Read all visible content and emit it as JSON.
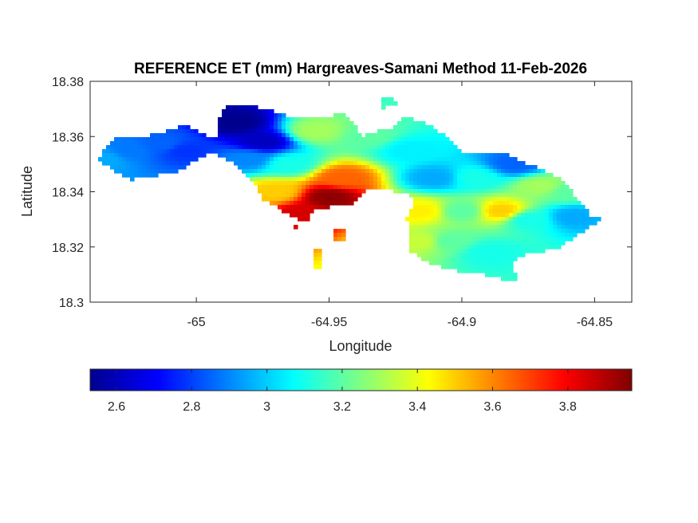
{
  "chart_data": {
    "type": "heatmap",
    "title": "REFERENCE ET (mm) Hargreaves-Samani Method  11-Feb-2026",
    "xlabel": "Longitude",
    "ylabel": "Latitude",
    "xlim": [
      -65.04,
      -64.836
    ],
    "ylim": [
      18.3,
      18.38
    ],
    "xticks": [
      -65,
      -64.95,
      -64.9,
      -64.85
    ],
    "xtick_labels": [
      "-65",
      "-64.95",
      "-64.9",
      "-64.85"
    ],
    "yticks": [
      18.3,
      18.32,
      18.34,
      18.36,
      18.38
    ],
    "ytick_labels": [
      "18.3",
      "18.32",
      "18.34",
      "18.36",
      "18.38"
    ],
    "colormap": "jet",
    "colorbar": {
      "location": "bottom",
      "range": [
        2.53,
        3.97
      ],
      "ticks": [
        2.6,
        2.8,
        3,
        3.2,
        3.4,
        3.6,
        3.8
      ],
      "tick_labels": [
        "2.6",
        "2.8",
        "3",
        "3.2",
        "3.4",
        "3.6",
        "3.8"
      ]
    },
    "grid": false,
    "points": [
      {
        "lon": -65.035,
        "lat": 18.352,
        "v": 2.95
      },
      {
        "lon": -65.025,
        "lat": 18.355,
        "v": 2.88
      },
      {
        "lon": -65.012,
        "lat": 18.357,
        "v": 2.85
      },
      {
        "lon": -65.005,
        "lat": 18.355,
        "v": 2.78
      },
      {
        "lon": -64.985,
        "lat": 18.365,
        "v": 2.55
      },
      {
        "lon": -64.975,
        "lat": 18.358,
        "v": 2.62
      },
      {
        "lon": -64.98,
        "lat": 18.352,
        "v": 2.9
      },
      {
        "lon": -64.965,
        "lat": 18.35,
        "v": 3.1
      },
      {
        "lon": -64.955,
        "lat": 18.362,
        "v": 3.3
      },
      {
        "lon": -64.945,
        "lat": 18.345,
        "v": 3.65
      },
      {
        "lon": -64.95,
        "lat": 18.338,
        "v": 3.95
      },
      {
        "lon": -64.96,
        "lat": 18.332,
        "v": 3.85
      },
      {
        "lon": -64.97,
        "lat": 18.34,
        "v": 3.5
      },
      {
        "lon": -64.935,
        "lat": 18.36,
        "v": 3.2
      },
      {
        "lon": -64.92,
        "lat": 18.355,
        "v": 3.05
      },
      {
        "lon": -64.91,
        "lat": 18.345,
        "v": 2.95
      },
      {
        "lon": -64.915,
        "lat": 18.333,
        "v": 3.45
      },
      {
        "lon": -64.9,
        "lat": 18.333,
        "v": 3.2
      },
      {
        "lon": -64.895,
        "lat": 18.345,
        "v": 3.1
      },
      {
        "lon": -64.885,
        "lat": 18.333,
        "v": 3.5
      },
      {
        "lon": -64.88,
        "lat": 18.35,
        "v": 2.85
      },
      {
        "lon": -64.875,
        "lat": 18.33,
        "v": 3.1
      },
      {
        "lon": -64.87,
        "lat": 18.342,
        "v": 3.3
      },
      {
        "lon": -64.86,
        "lat": 18.34,
        "v": 3.2
      },
      {
        "lon": -64.858,
        "lat": 18.331,
        "v": 2.95
      },
      {
        "lon": -64.905,
        "lat": 18.322,
        "v": 3.2
      },
      {
        "lon": -64.89,
        "lat": 18.318,
        "v": 3.1
      },
      {
        "lon": -64.915,
        "lat": 18.322,
        "v": 3.35
      }
    ]
  }
}
